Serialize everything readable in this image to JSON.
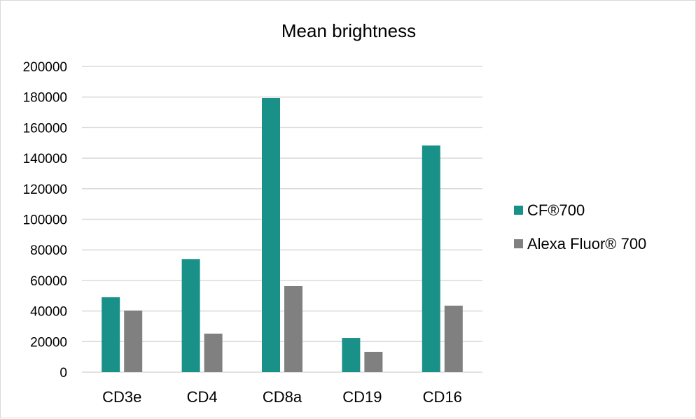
{
  "chart_data": {
    "type": "bar",
    "title": "Mean brightness",
    "xlabel": "",
    "ylabel": "",
    "categories": [
      "CD3e",
      "CD4",
      "CD8a",
      "CD19",
      "CD16"
    ],
    "series": [
      {
        "name": "CF®700",
        "color": "#1a9188",
        "values": [
          49000,
          74000,
          179400,
          22400,
          148300
        ]
      },
      {
        "name": "Alexa Fluor® 700",
        "color": "#808080",
        "values": [
          40300,
          25200,
          56300,
          13300,
          43500
        ]
      }
    ],
    "ylim": [
      0,
      200000
    ],
    "yticks": [
      "0",
      "20000",
      "40000",
      "60000",
      "80000",
      "100000",
      "120000",
      "140000",
      "160000",
      "180000",
      "200000"
    ],
    "grid": true,
    "legend_position": "right"
  }
}
